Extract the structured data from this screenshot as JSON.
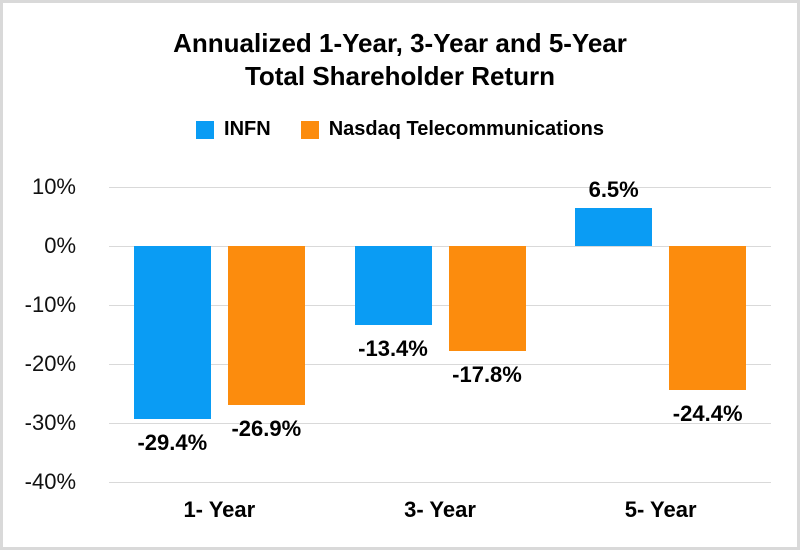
{
  "window": {
    "background": "#ffffff",
    "border_color": "#d9d9d9"
  },
  "title": {
    "line1": "Annualized 1-Year, 3-Year and 5-Year",
    "line2": "Total Shareholder Return"
  },
  "legend": [
    {
      "label": "INFN",
      "color": "#0a9cf4"
    },
    {
      "label": "Nasdaq Telecommunications",
      "color": "#fc8c0d"
    }
  ],
  "chart_data": {
    "type": "bar",
    "title": "Annualized 1-Year, 3-Year and 5-Year Total Shareholder Return",
    "categories": [
      "1- Year",
      "3- Year",
      "5- Year"
    ],
    "series": [
      {
        "name": "INFN",
        "color": "#0a9cf4",
        "values": [
          -29.4,
          -13.4,
          6.5
        ],
        "labels": [
          "-29.4%",
          "-13.4%",
          "6.5%"
        ]
      },
      {
        "name": "Nasdaq Telecommunications",
        "color": "#fc8c0d",
        "values": [
          -26.9,
          -17.8,
          -24.4
        ],
        "labels": [
          "-26.9%",
          "-17.8%",
          "-24.4%"
        ]
      }
    ],
    "xlabel": "",
    "ylabel": "",
    "ylim": [
      -40,
      10
    ],
    "y_ticks": [
      10,
      0,
      -10,
      -20,
      -30,
      -40
    ],
    "y_tick_labels": [
      "10%",
      "0%",
      "-10%",
      "-20%",
      "-30%",
      "-40%"
    ],
    "grid": true,
    "gridline_color": "#d9d9d9",
    "legend_position": "top"
  }
}
